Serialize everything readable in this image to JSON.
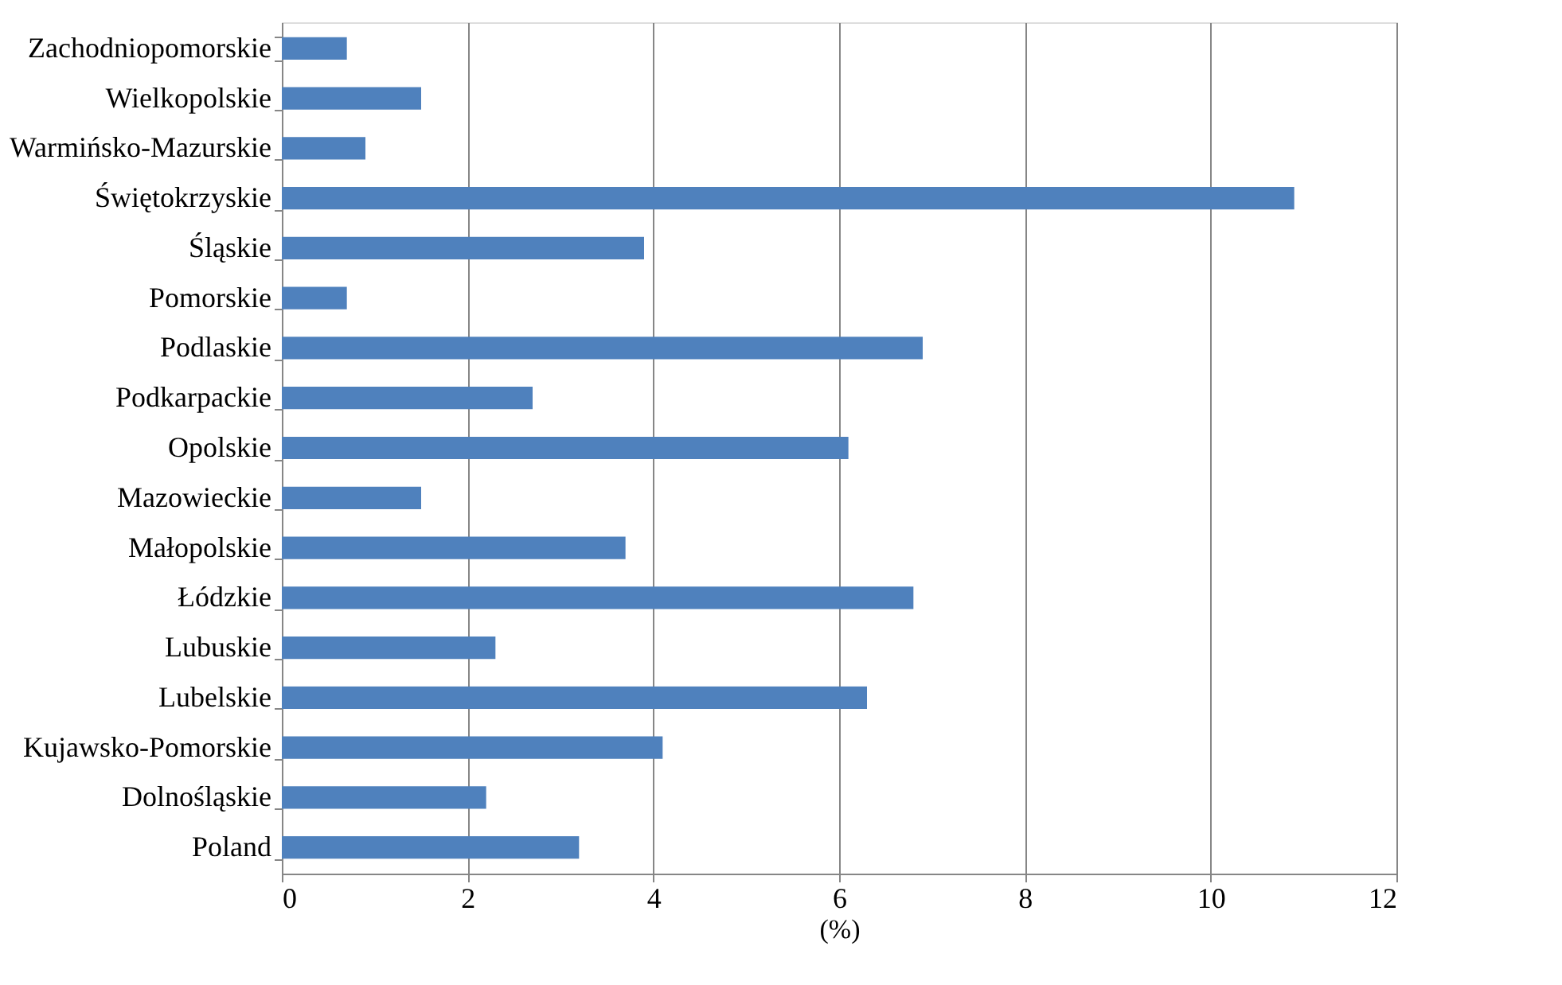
{
  "chart_data": {
    "type": "bar",
    "orientation": "horizontal",
    "xlabel": "(%)",
    "categories": [
      "Zachodniopomorskie",
      "Wielkopolskie",
      "Warmińsko-Mazurskie",
      "Świętokrzyskie",
      "Śląskie",
      "Pomorskie",
      "Podlaskie",
      "Podkarpackie",
      "Opolskie",
      "Mazowieckie",
      "Małopolskie",
      "Łódzkie",
      "Lubuskie",
      "Lubelskie",
      "Kujawsko-Pomorskie",
      "Dolnośląskie",
      "Poland"
    ],
    "values": [
      0.7,
      1.5,
      0.9,
      10.9,
      3.9,
      0.7,
      6.9,
      2.7,
      6.1,
      1.5,
      3.7,
      6.8,
      2.3,
      6.3,
      4.1,
      2.2,
      3.2
    ],
    "color": "#4f81bd",
    "xlim": [
      0,
      12
    ],
    "xticks": [
      0,
      2,
      4,
      6,
      8,
      10,
      12
    ],
    "grid": "x"
  }
}
